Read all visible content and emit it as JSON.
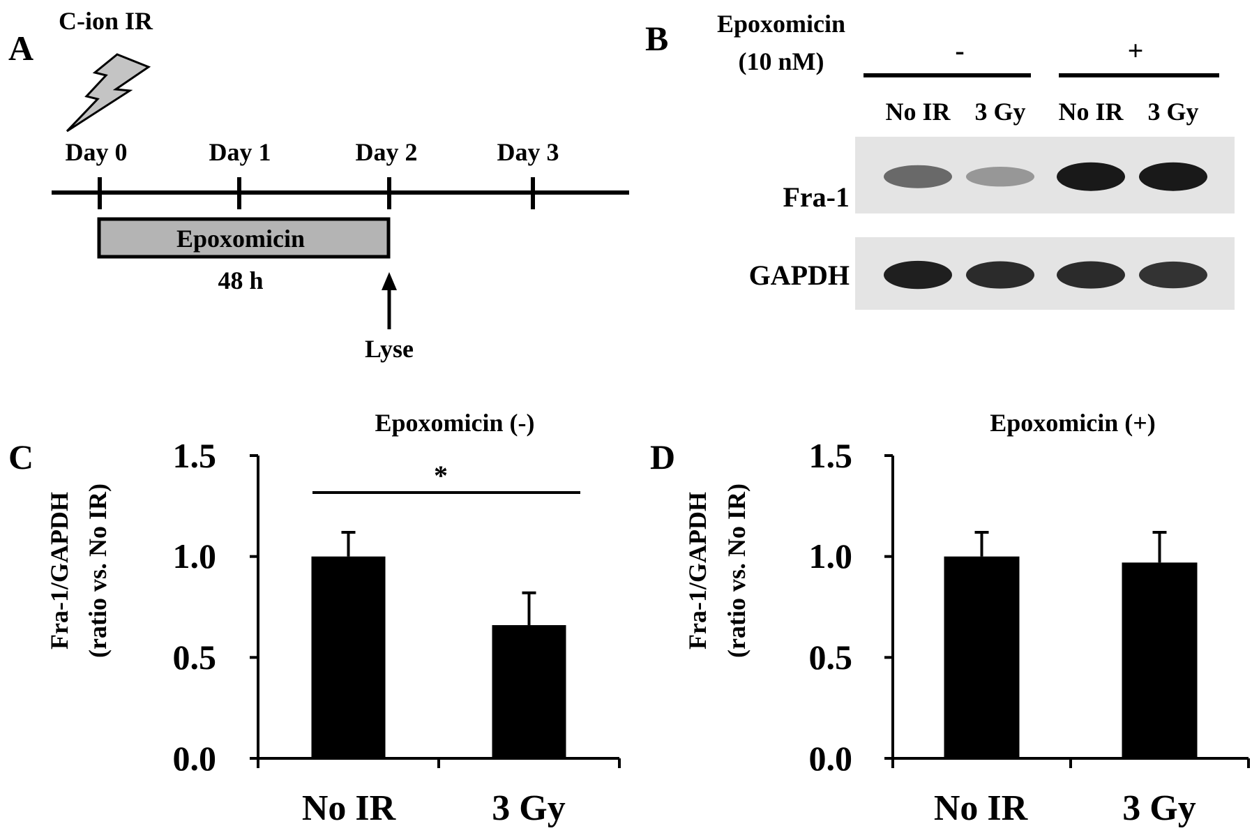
{
  "panels": {
    "A": "A",
    "B": "B",
    "C": "C",
    "D": "D"
  },
  "panel_a": {
    "title": "C-ion IR",
    "days": [
      "Day 0",
      "Day 1",
      "Day 2",
      "Day 3"
    ],
    "treatment_label": "Epoxomicin",
    "duration_label": "48 h",
    "lyse_label": "Lyse"
  },
  "panel_b": {
    "treatment_line1": "Epoxomicin",
    "treatment_line2": "(10 nM)",
    "groups": [
      "-",
      "+"
    ],
    "lanes": [
      "No IR",
      "3 Gy",
      "No IR",
      "3 Gy"
    ],
    "rows": [
      {
        "label": "Fra-1",
        "band_intensity": [
          0.55,
          0.32,
          0.95,
          0.95
        ]
      },
      {
        "label": "GAPDH",
        "band_intensity": [
          0.92,
          0.86,
          0.86,
          0.82
        ]
      }
    ]
  },
  "chart_data": [
    {
      "type": "bar",
      "title": "Epoxomicin (-)",
      "ylabel_line1": "Fra-1/GAPDH",
      "ylabel_line2": "(ratio vs. No IR)",
      "categories": [
        "No IR",
        "3 Gy"
      ],
      "values": [
        1.0,
        0.66
      ],
      "errors": [
        0.12,
        0.16
      ],
      "ylim": [
        0.0,
        1.5
      ],
      "yticks": [
        "0.0",
        "0.5",
        "1.0",
        "1.5"
      ],
      "significance": "*",
      "bar_color": "#000000"
    },
    {
      "type": "bar",
      "title": "Epoxomicin (+)",
      "ylabel_line1": "Fra-1/GAPDH",
      "ylabel_line2": "(ratio vs. No IR)",
      "categories": [
        "No IR",
        "3 Gy"
      ],
      "values": [
        1.0,
        0.97
      ],
      "errors": [
        0.12,
        0.15
      ],
      "ylim": [
        0.0,
        1.5
      ],
      "yticks": [
        "0.0",
        "0.5",
        "1.0",
        "1.5"
      ],
      "bar_color": "#000000"
    }
  ]
}
